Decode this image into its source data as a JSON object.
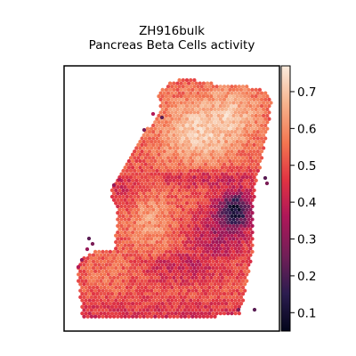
{
  "chart_data": {
    "type": "heatmap",
    "title_lines": [
      "ZH916bulk",
      "Pancreas Beta Cells activity"
    ],
    "xlabel": "",
    "ylabel": "",
    "colorbar": {
      "colormap": "rocket",
      "range": [
        0.05,
        0.77
      ],
      "ticks": [
        0.1,
        0.2,
        0.3,
        0.4,
        0.5,
        0.6,
        0.7
      ],
      "tick_labels": [
        "0.1",
        "0.2",
        "0.3",
        "0.4",
        "0.5",
        "0.6",
        "0.7"
      ]
    },
    "spots": "hexagonal spatial spot grid; activity values estimated from colour",
    "activity_regions": [
      {
        "region": "upper center",
        "value": 0.68
      },
      {
        "region": "upper right",
        "value": 0.62
      },
      {
        "region": "left middle",
        "value": 0.63
      },
      {
        "region": "right middle (dark patch)",
        "value": 0.12
      },
      {
        "region": "lower left",
        "value": 0.55
      },
      {
        "region": "bottom edge",
        "value": 0.47
      },
      {
        "region": "top-left outliers",
        "value": 0.25
      }
    ]
  }
}
